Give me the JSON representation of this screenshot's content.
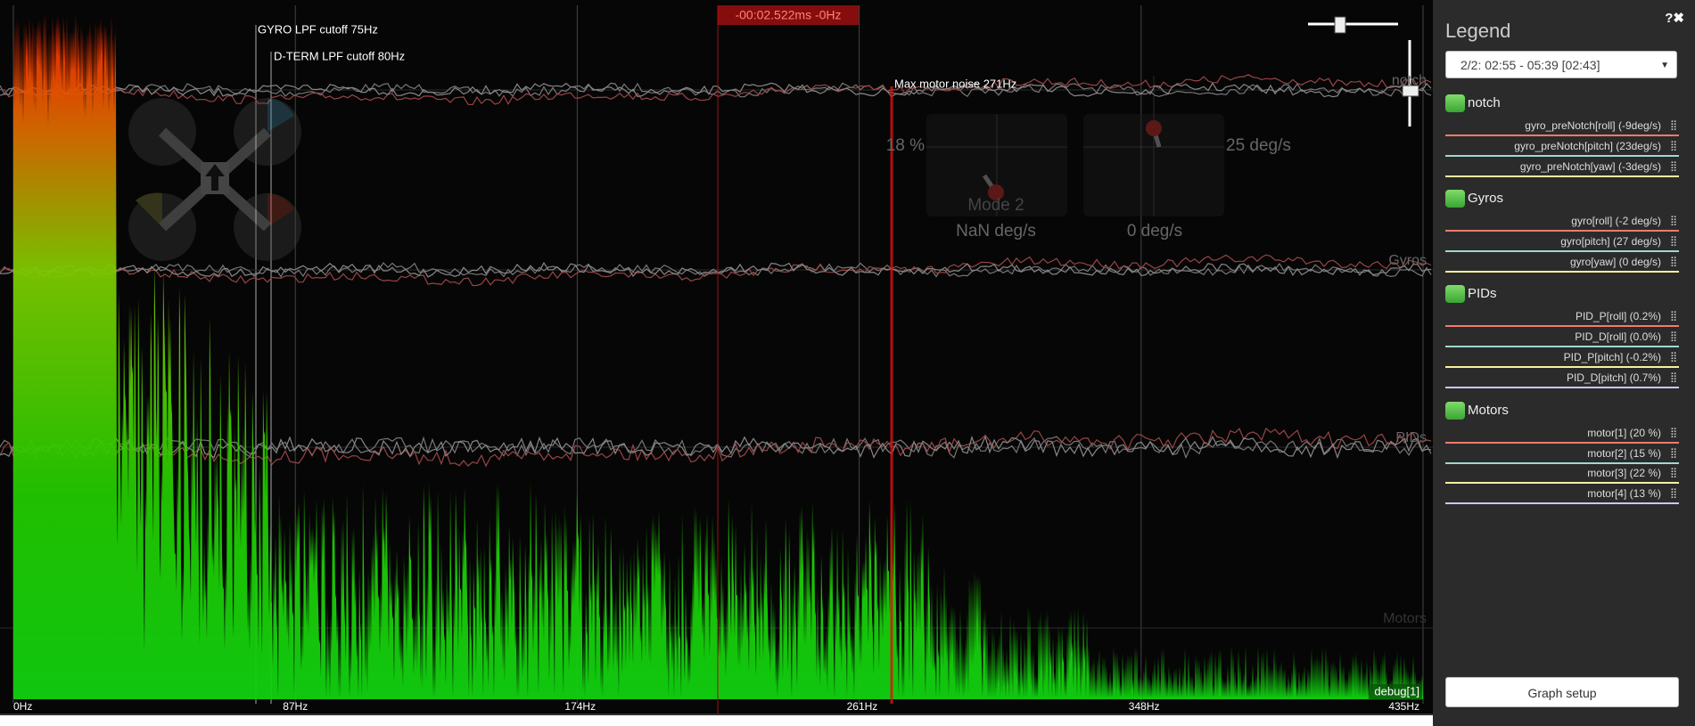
{
  "graph": {
    "time_label": "-00:02.522ms -0Hz",
    "annotations": {
      "gyro_lpf": "GYRO LPF cutoff 75Hz",
      "dterm_lpf": "D-TERM LPF cutoff 80Hz",
      "max_motor_noise": "Max motor noise 271Hz"
    },
    "group_labels": [
      "notch",
      "Gyros",
      "PIDs",
      "Motors"
    ],
    "freq_ticks": [
      "0Hz",
      "87Hz",
      "174Hz",
      "261Hz",
      "348Hz",
      "435Hz"
    ],
    "debug_label": "debug[1]",
    "craft": {
      "throttle": "18 %",
      "yaw_rate": "25 deg/s",
      "mode": "Mode 2",
      "left_rate": "NaN deg/s",
      "right_rate": "0 deg/s"
    }
  },
  "legend": {
    "title": "Legend",
    "log_selector": "2/2: 02:55 - 05:39 [02:43]",
    "groups": [
      {
        "name": "notch",
        "items": [
          "gyro_preNotch[roll] (-9deg/s)",
          "gyro_preNotch[pitch] (23deg/s)",
          "gyro_preNotch[yaw] (-3deg/s)"
        ]
      },
      {
        "name": "Gyros",
        "items": [
          "gyro[roll] (-2 deg/s)",
          "gyro[pitch] (27 deg/s)",
          "gyro[yaw] (0 deg/s)"
        ]
      },
      {
        "name": "PIDs",
        "items": [
          "PID_P[roll] (0.2%)",
          "PID_D[roll] (0.0%)",
          "PID_P[pitch] (-0.2%)",
          "PID_D[pitch] (0.7%)"
        ]
      },
      {
        "name": "Motors",
        "items": [
          "motor[1] (20 %)",
          "motor[2] (15 %)",
          "motor[3] (22 %)",
          "motor[4] (13 %)"
        ]
      }
    ],
    "setup_button": "Graph setup"
  }
}
